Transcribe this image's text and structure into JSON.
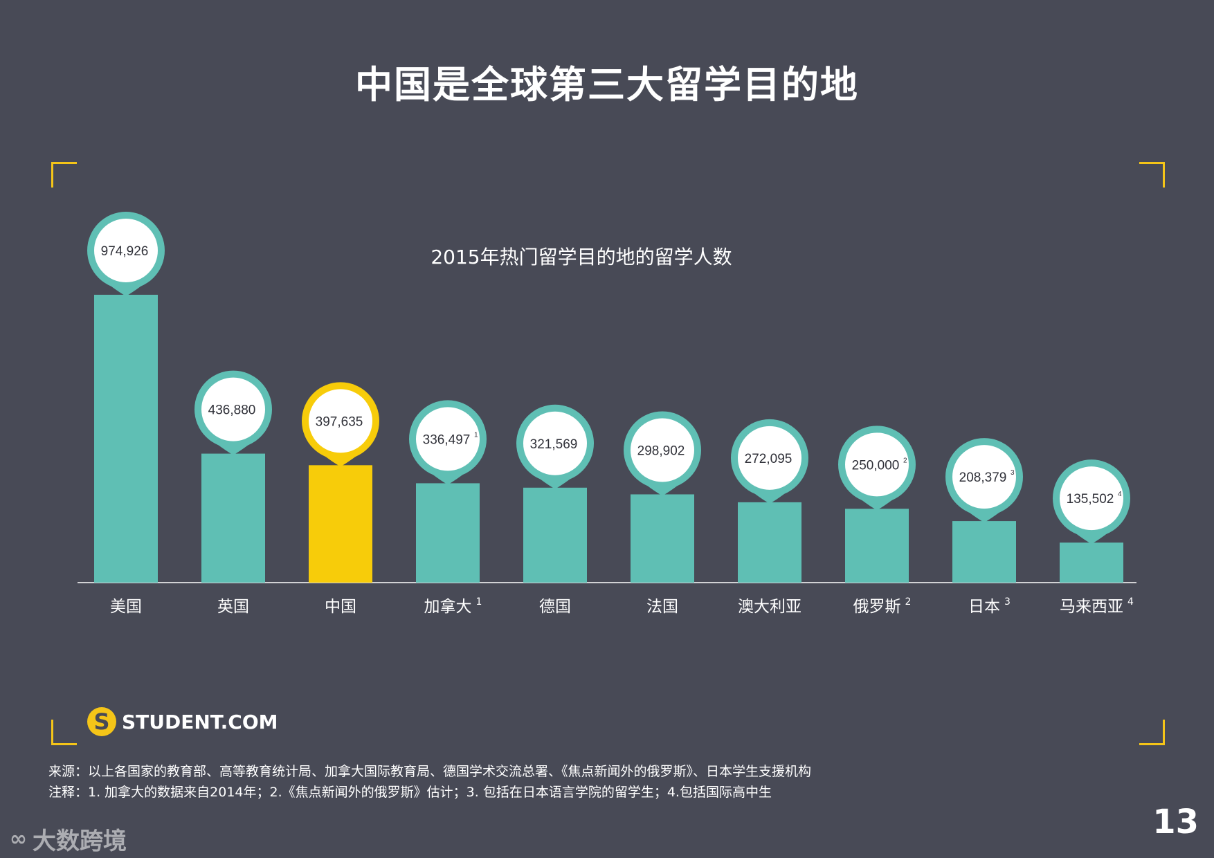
{
  "page": {
    "title": "中国是全球第三大留学目的地",
    "page_number": "13"
  },
  "colors": {
    "background": "#484a56",
    "bar": "#5fbfb4",
    "highlight": "#f7cc0a",
    "bubble_ring": "#5fbfb4",
    "bubble_fill": "#ffffff",
    "corner": "#f5c518"
  },
  "chart_data": {
    "type": "bar",
    "title": "2015年热门留学目的地的留学人数",
    "xlabel": "",
    "ylabel": "",
    "ylim": [
      0,
      1000000
    ],
    "categories": [
      "美国",
      "英国",
      "中国",
      "加拿大",
      "德国",
      "法国",
      "澳大利亚",
      "俄罗斯",
      "日本",
      "马来西亚"
    ],
    "category_notes": [
      "",
      "",
      "",
      "1",
      "",
      "",
      "",
      "2",
      "3",
      "4"
    ],
    "values": [
      974926,
      436880,
      397635,
      336497,
      321569,
      298902,
      272095,
      250000,
      208379,
      135502
    ],
    "value_labels": [
      "974,926",
      "436,880",
      "397,635",
      "336,497",
      "321,569",
      "298,902",
      "272,095",
      "250,000",
      "208,379",
      "135,502"
    ],
    "value_notes": [
      "",
      "",
      "",
      "1",
      "",
      "",
      "",
      "2",
      "3",
      "4"
    ],
    "highlight_index": 2
  },
  "logo": {
    "icon": "S",
    "text": "STUDENT.COM"
  },
  "notes": {
    "source": "来源：以上各国家的教育部、高等教育统计局、加拿大国际教育局、德国学术交流总署、《焦点新闻外的俄罗斯》、日本学生支援机构",
    "remarks": "注释：1. 加拿大的数据来自2014年；2.《焦点新闻外的俄罗斯》估计；3. 包括在日本语言学院的留学生；4.包括国际高中生"
  },
  "watermark": {
    "icon": "∞",
    "text": "大数跨境"
  }
}
